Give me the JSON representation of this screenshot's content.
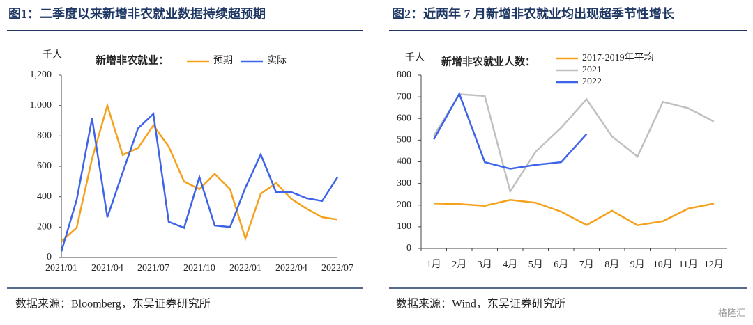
{
  "watermark": "格隆汇",
  "chart_data": [
    {
      "type": "line",
      "title": "图1：二季度以来新增非农就业数据持续超预期",
      "source": "数据来源：Bloomberg，东吴证券研究所",
      "unit_label": "千人",
      "legend_title": "新增非农就业：",
      "categories": [
        "2021/01",
        null,
        null,
        "2021/04",
        null,
        null,
        "2021/07",
        null,
        null,
        "2021/10",
        null,
        null,
        "2022/01",
        null,
        null,
        "2022/04",
        null,
        null,
        "2022/07"
      ],
      "series": [
        {
          "name": "预期",
          "color": "#f5a11c",
          "values": [
            105,
            197,
            650,
            1000,
            675,
            720,
            870,
            730,
            500,
            450,
            550,
            450,
            125,
            420,
            490,
            385,
            320,
            265,
            250
          ]
        },
        {
          "name": "实际",
          "color": "#3d63e8",
          "values": [
            40,
            380,
            915,
            265,
            560,
            850,
            945,
            235,
            195,
            530,
            210,
            200,
            460,
            678,
            430,
            430,
            390,
            372,
            528
          ]
        }
      ],
      "ylim": [
        0,
        1200
      ],
      "yticks": [
        0,
        200,
        400,
        600,
        800,
        {
          "value": 1000,
          "label": "1,000"
        },
        {
          "value": 1200,
          "label": "1,200"
        }
      ]
    },
    {
      "type": "line",
      "title": "图2：近两年 7 月新增非农就业均出现超季节性增长",
      "source": "数据来源：Wind，东吴证券研究所",
      "unit_label": "千人",
      "legend_title": "新增非农就业人数：",
      "categories": [
        "1月",
        "2月",
        "3月",
        "4月",
        "5月",
        "6月",
        "7月",
        "8月",
        "9月",
        "10月",
        "11月",
        "12月"
      ],
      "series": [
        {
          "name": "2017-2019年平均",
          "color": "#f5a11c",
          "values": [
            208,
            205,
            197,
            224,
            211,
            170,
            108,
            174,
            107,
            126,
            184,
            207
          ]
        },
        {
          "name": "2021",
          "color": "#c0c0c0",
          "values": [
            520,
            712,
            704,
            263,
            447,
            557,
            689,
            517,
            424,
            677,
            647,
            586
          ]
        },
        {
          "name": "2022",
          "color": "#3d63e8",
          "values": [
            504,
            714,
            398,
            368,
            386,
            398,
            528,
            null,
            null,
            null,
            null,
            null
          ]
        }
      ],
      "ylim": [
        0,
        800
      ],
      "yticks": [
        0,
        100,
        200,
        300,
        400,
        500,
        600,
        700,
        800
      ]
    }
  ]
}
